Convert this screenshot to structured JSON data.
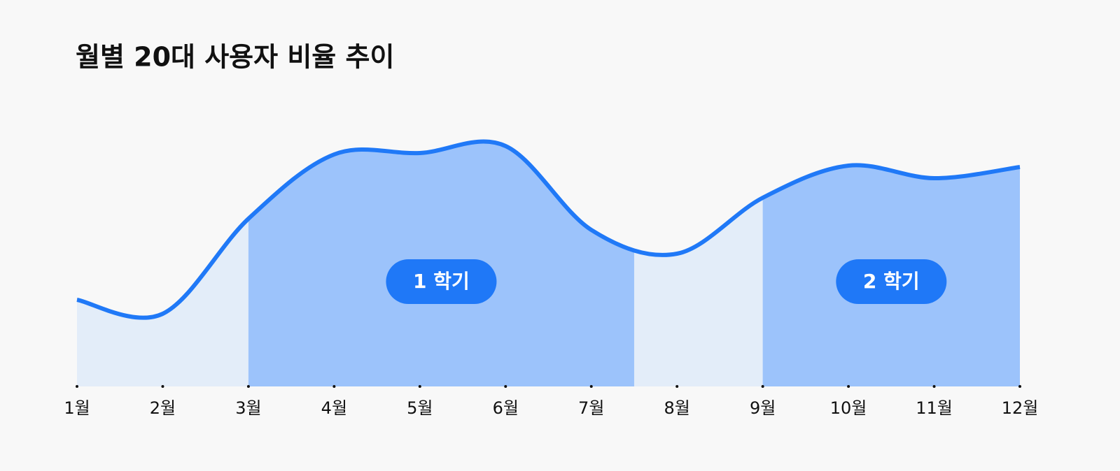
{
  "chart_data": {
    "type": "area",
    "title": "월별 20대 사용자 비율 추이",
    "categories": [
      "1월",
      "2월",
      "3월",
      "4월",
      "5월",
      "6월",
      "7월",
      "8월",
      "9월",
      "10월",
      "11월",
      "12월"
    ],
    "values": [
      31,
      26,
      60,
      83,
      83.5,
      86,
      56,
      47.5,
      67.5,
      79,
      74.5,
      78.5
    ],
    "ylim": [
      0,
      100
    ],
    "color": "#2079f7",
    "fill": "#e3edf9",
    "band_color": "#9cc3fb",
    "label_color": "#1f78f7",
    "bands": [
      {
        "label": "1 학기",
        "start": 2,
        "end": 6.5
      },
      {
        "label": "2 학기",
        "start": 8,
        "end": 11
      }
    ]
  }
}
